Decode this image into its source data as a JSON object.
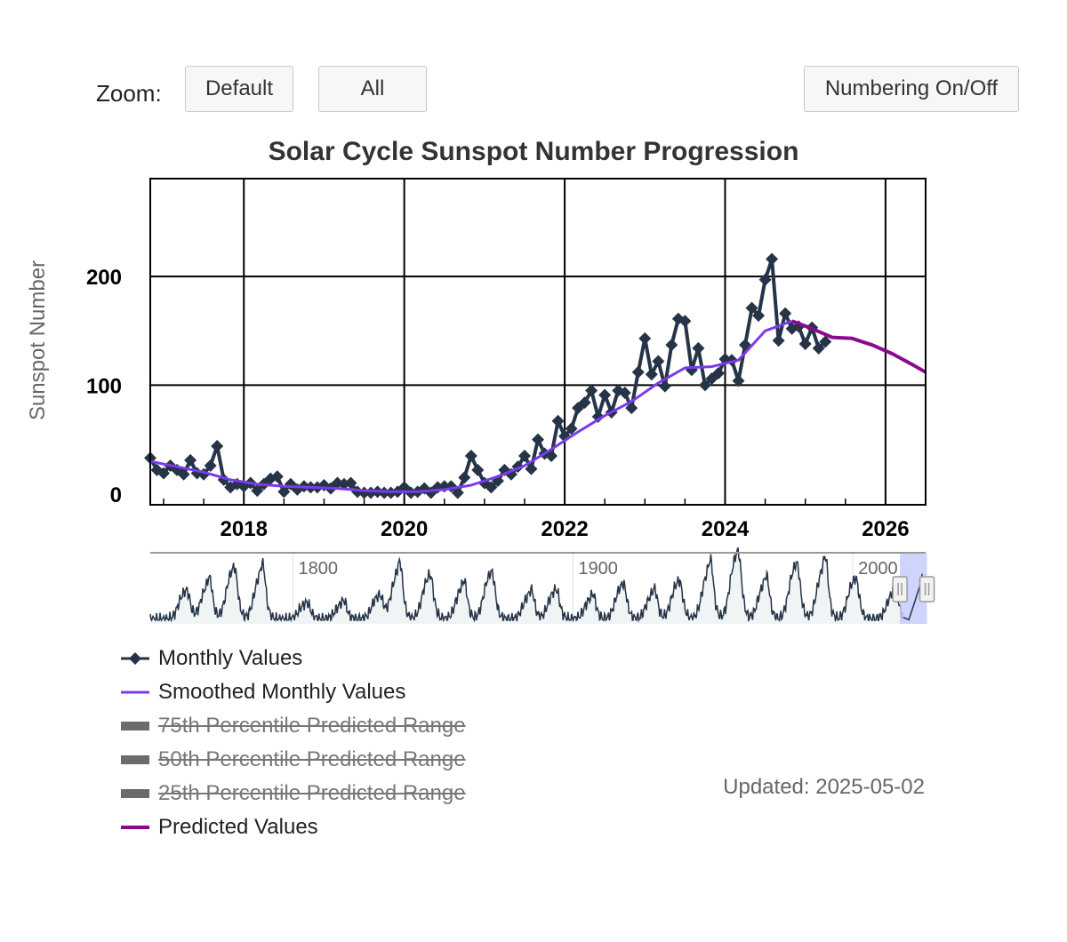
{
  "toolbar": {
    "zoom_label": "Zoom:",
    "default_label": "Default",
    "all_label": "All",
    "numbering_label": "Numbering On/Off"
  },
  "updated_text": "Updated: 2025-05-02",
  "colors": {
    "monthly": "#253447",
    "smoothed": "#7c3aed",
    "predicted": "#8b0a8b",
    "range": "#6b6b6b",
    "navigator_fill": "#f1f4f4",
    "navigator_select": "#c6cdfa"
  },
  "chart_data": {
    "type": "line",
    "title": "Solar Cycle Sunspot Number Progression",
    "xlabel": "",
    "ylabel": "Sunspot Number",
    "xlim": [
      "2016-11",
      "2026-07"
    ],
    "ylim": [
      -10,
      290
    ],
    "yticks": [
      0,
      100,
      200
    ],
    "xticks": [
      "2018",
      "2020",
      "2022",
      "2024",
      "2026"
    ],
    "grid": true,
    "legend_position": "bottom-left",
    "series": [
      {
        "name": "Monthly Values",
        "marker": "diamond",
        "x": [
          "2016-11",
          "2016-12",
          "2017-01",
          "2017-02",
          "2017-03",
          "2017-04",
          "2017-05",
          "2017-06",
          "2017-07",
          "2017-08",
          "2017-09",
          "2017-10",
          "2017-11",
          "2017-12",
          "2018-01",
          "2018-02",
          "2018-03",
          "2018-04",
          "2018-05",
          "2018-06",
          "2018-07",
          "2018-08",
          "2018-09",
          "2018-10",
          "2018-11",
          "2018-12",
          "2019-01",
          "2019-02",
          "2019-03",
          "2019-04",
          "2019-05",
          "2019-06",
          "2019-07",
          "2019-08",
          "2019-09",
          "2019-10",
          "2019-11",
          "2019-12",
          "2020-01",
          "2020-02",
          "2020-03",
          "2020-04",
          "2020-05",
          "2020-06",
          "2020-07",
          "2020-08",
          "2020-09",
          "2020-10",
          "2020-11",
          "2020-12",
          "2021-01",
          "2021-02",
          "2021-03",
          "2021-04",
          "2021-05",
          "2021-06",
          "2021-07",
          "2021-08",
          "2021-09",
          "2021-10",
          "2021-11",
          "2021-12",
          "2022-01",
          "2022-02",
          "2022-03",
          "2022-04",
          "2022-05",
          "2022-06",
          "2022-07",
          "2022-08",
          "2022-09",
          "2022-10",
          "2022-11",
          "2022-12",
          "2023-01",
          "2023-02",
          "2023-03",
          "2023-04",
          "2023-05",
          "2023-06",
          "2023-07",
          "2023-08",
          "2023-09",
          "2023-10",
          "2023-11",
          "2023-12",
          "2024-01",
          "2024-02",
          "2024-03",
          "2024-04",
          "2024-05",
          "2024-06",
          "2024-07",
          "2024-08",
          "2024-09",
          "2024-10",
          "2024-11",
          "2024-12",
          "2025-01",
          "2025-02",
          "2025-03",
          "2025-04"
        ],
        "values": [
          33,
          22,
          19,
          26,
          22,
          18,
          31,
          19,
          18,
          26,
          44,
          13,
          6,
          9,
          7,
          10,
          3,
          9,
          14,
          16,
          2,
          9,
          4,
          7,
          6,
          6,
          8,
          5,
          10,
          9,
          10,
          2,
          1,
          1,
          2,
          1,
          1,
          2,
          6,
          1,
          2,
          5,
          1,
          6,
          7,
          7,
          1,
          15,
          35,
          22,
          10,
          6,
          12,
          22,
          18,
          25,
          35,
          23,
          50,
          37,
          35,
          67,
          53,
          60,
          79,
          84,
          95,
          71,
          91,
          75,
          95,
          93,
          79,
          112,
          143,
          110,
          122,
          99,
          137,
          161,
          159,
          114,
          134,
          100,
          106,
          111,
          124,
          123,
          104,
          137,
          171,
          164,
          197,
          216,
          141,
          166,
          152,
          154,
          138,
          153,
          134,
          140
        ]
      },
      {
        "name": "Smoothed Monthly Values",
        "x": [
          "2016-11",
          "2017-03",
          "2017-07",
          "2017-11",
          "2018-03",
          "2018-07",
          "2018-11",
          "2019-03",
          "2019-07",
          "2019-11",
          "2020-03",
          "2020-07",
          "2020-11",
          "2021-03",
          "2021-07",
          "2021-11",
          "2022-03",
          "2022-07",
          "2022-11",
          "2023-03",
          "2023-07",
          "2023-11",
          "2024-03",
          "2024-07",
          "2024-11"
        ],
        "values": [
          30,
          25,
          20,
          13,
          9,
          7,
          6,
          5,
          3,
          2,
          2,
          4,
          8,
          16,
          26,
          41,
          57,
          72,
          85,
          102,
          116,
          117,
          123,
          150,
          159
        ]
      },
      {
        "name": "75th Percentile Predicted Range",
        "visible": false
      },
      {
        "name": "50th Percentile Predicted Range",
        "visible": false
      },
      {
        "name": "25th Percentile Predicted Range",
        "visible": false
      },
      {
        "name": "Predicted Values",
        "x": [
          "2024-11",
          "2025-02",
          "2025-05",
          "2025-08",
          "2025-11",
          "2026-02",
          "2026-05",
          "2026-07"
        ],
        "values": [
          159,
          152,
          144,
          143,
          137,
          129,
          119,
          112
        ]
      }
    ],
    "navigator": {
      "xlim": [
        1749,
        2026
      ],
      "labels": [
        "1800",
        "1900",
        "2000"
      ],
      "selected": [
        "2016-11",
        "2026-07"
      ]
    }
  }
}
